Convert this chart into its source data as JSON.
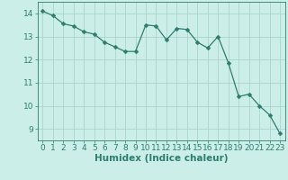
{
  "x": [
    0,
    1,
    2,
    3,
    4,
    5,
    6,
    7,
    8,
    9,
    10,
    11,
    12,
    13,
    14,
    15,
    16,
    17,
    18,
    19,
    20,
    21,
    22,
    23
  ],
  "y": [
    14.1,
    13.9,
    13.55,
    13.45,
    13.2,
    13.1,
    12.75,
    12.55,
    12.35,
    12.35,
    13.5,
    13.45,
    12.85,
    13.35,
    13.3,
    12.75,
    12.5,
    13.0,
    11.85,
    10.4,
    10.5,
    10.0,
    9.6,
    8.8
  ],
  "line_color": "#2d7d6e",
  "marker": "D",
  "marker_size": 2.5,
  "bg_color": "#cceee8",
  "grid_color": "#aad4cc",
  "xlabel": "Humidex (Indice chaleur)",
  "ylim": [
    8.5,
    14.5
  ],
  "xlim": [
    -0.5,
    23.5
  ],
  "yticks": [
    9,
    10,
    11,
    12,
    13,
    14
  ],
  "xticks": [
    0,
    1,
    2,
    3,
    4,
    5,
    6,
    7,
    8,
    9,
    10,
    11,
    12,
    13,
    14,
    15,
    16,
    17,
    18,
    19,
    20,
    21,
    22,
    23
  ],
  "tick_color": "#2d7d6e",
  "label_color": "#2d7d6e",
  "font_size_xlabel": 7.5,
  "font_size_ticks": 6.5
}
